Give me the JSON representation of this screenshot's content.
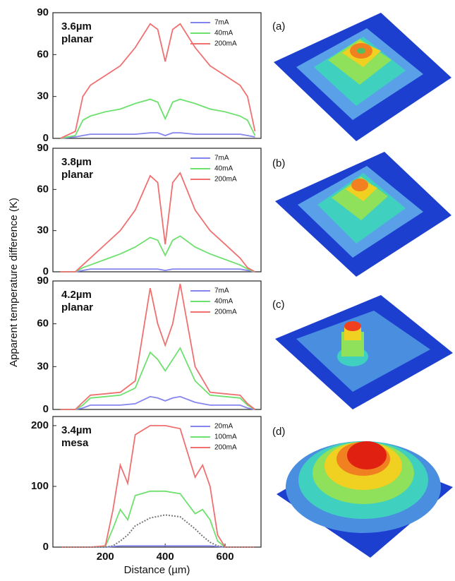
{
  "figure": {
    "ylabel": "Apparent temperature difference (K)",
    "panel_labels": [
      "(a)",
      "(b)",
      "(c)",
      "(d)"
    ]
  },
  "chart_data": [
    {
      "type": "line",
      "annotation": [
        "3.6µm",
        "planar"
      ],
      "legend": "upper right",
      "x": [
        50,
        100,
        125,
        150,
        200,
        250,
        300,
        350,
        375,
        400,
        425,
        450,
        500,
        550,
        600,
        650,
        675,
        700
      ],
      "xlim": [
        25,
        720
      ],
      "ylim": [
        0,
        90
      ],
      "yticks": [
        0,
        30,
        60,
        90
      ],
      "series": [
        {
          "name": "7mA",
          "color": "#8585f0",
          "values": [
            0,
            1,
            2,
            3,
            3,
            3,
            3,
            4,
            4,
            2,
            4,
            4,
            3,
            3,
            3,
            3,
            2,
            1
          ]
        },
        {
          "name": "40mA",
          "color": "#6ee06e",
          "values": [
            0,
            2,
            13,
            16,
            19,
            21,
            25,
            28,
            26,
            14,
            26,
            28,
            25,
            21,
            19,
            16,
            13,
            2
          ]
        },
        {
          "name": "200mA",
          "color": "#f07070",
          "values": [
            0,
            5,
            30,
            38,
            45,
            52,
            65,
            82,
            78,
            55,
            78,
            82,
            65,
            52,
            45,
            38,
            30,
            5
          ]
        }
      ]
    },
    {
      "type": "line",
      "annotation": [
        "3.8µm",
        "planar"
      ],
      "legend": "upper right",
      "x": [
        50,
        100,
        125,
        150,
        200,
        250,
        300,
        350,
        375,
        400,
        425,
        450,
        500,
        550,
        600,
        650,
        675,
        700
      ],
      "xlim": [
        25,
        720
      ],
      "ylim": [
        0,
        90
      ],
      "yticks": [
        0,
        30,
        60,
        90
      ],
      "series": [
        {
          "name": "7mA",
          "color": "#8585f0",
          "values": [
            0,
            0,
            1,
            2,
            2,
            2,
            2,
            2,
            2,
            1,
            2,
            2,
            2,
            2,
            2,
            2,
            1,
            0
          ]
        },
        {
          "name": "40mA",
          "color": "#6ee06e",
          "values": [
            0,
            0,
            3,
            5,
            9,
            13,
            18,
            25,
            23,
            12,
            23,
            26,
            18,
            13,
            9,
            5,
            2,
            0
          ]
        },
        {
          "name": "200mA",
          "color": "#f07070",
          "values": [
            0,
            0,
            5,
            10,
            20,
            30,
            45,
            70,
            65,
            20,
            65,
            72,
            45,
            30,
            20,
            10,
            3,
            0
          ]
        }
      ]
    },
    {
      "type": "line",
      "annotation": [
        "4.2µm",
        "planar"
      ],
      "legend": "upper right",
      "x": [
        50,
        100,
        125,
        150,
        200,
        250,
        300,
        350,
        375,
        400,
        425,
        450,
        500,
        550,
        600,
        650,
        675,
        700
      ],
      "xlim": [
        25,
        720
      ],
      "ylim": [
        0,
        90
      ],
      "yticks": [
        0,
        30,
        60,
        90
      ],
      "series": [
        {
          "name": "7mA",
          "color": "#8585f0",
          "values": [
            0,
            0,
            1,
            3,
            3,
            3,
            4,
            9,
            8,
            6,
            8,
            9,
            5,
            3,
            3,
            3,
            1,
            0
          ]
        },
        {
          "name": "40mA",
          "color": "#6ee06e",
          "values": [
            0,
            0,
            3,
            8,
            9,
            10,
            15,
            40,
            35,
            27,
            35,
            43,
            20,
            10,
            9,
            8,
            3,
            0
          ]
        },
        {
          "name": "200mA",
          "color": "#f07070",
          "values": [
            0,
            0,
            5,
            10,
            11,
            12,
            20,
            85,
            60,
            45,
            60,
            88,
            30,
            12,
            11,
            10,
            4,
            0
          ]
        }
      ]
    },
    {
      "type": "line",
      "annotation": [
        "3.4µm",
        "mesa"
      ],
      "legend": "upper right",
      "x": [
        50,
        100,
        150,
        200,
        225,
        250,
        275,
        300,
        350,
        400,
        450,
        500,
        525,
        550,
        575,
        600,
        650,
        700
      ],
      "xlim": [
        25,
        720
      ],
      "ylim": [
        0,
        215
      ],
      "yticks": [
        0,
        100,
        200
      ],
      "xticks": [
        200,
        400,
        600
      ],
      "xlabel": "Distance (µm)",
      "series": [
        {
          "name": "20mA",
          "color": "#8585f0",
          "values": [
            0,
            0,
            0,
            0,
            1,
            2,
            2,
            2,
            2,
            2,
            2,
            2,
            2,
            2,
            1,
            0,
            0,
            0
          ]
        },
        {
          "name": "100mA",
          "color": "#6ee06e",
          "values": [
            0,
            0,
            0,
            1,
            30,
            62,
            45,
            85,
            92,
            92,
            88,
            55,
            62,
            45,
            10,
            0,
            0,
            0
          ]
        },
        {
          "name": "200mA",
          "color": "#f07070",
          "values": [
            0,
            0,
            0,
            2,
            60,
            135,
            105,
            185,
            200,
            200,
            195,
            115,
            135,
            100,
            20,
            0,
            0,
            0
          ]
        },
        {
          "color": "#777777",
          "style": "dotted",
          "values": [
            0,
            0,
            0,
            0,
            2,
            10,
            20,
            35,
            48,
            53,
            50,
            30,
            18,
            8,
            2,
            0,
            0,
            0
          ]
        }
      ]
    }
  ]
}
